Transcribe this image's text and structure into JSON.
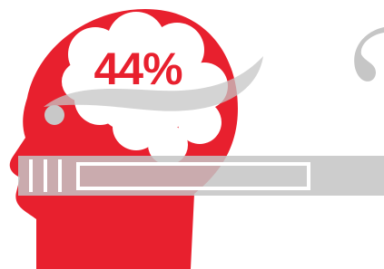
{
  "stat": {
    "value_text": "44%"
  }
}
